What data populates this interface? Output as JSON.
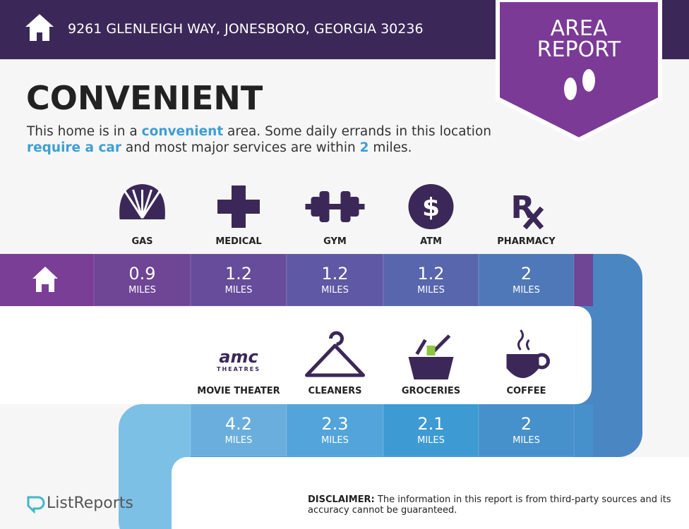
{
  "header": {
    "address": "9261 GLENLEIGH WAY, JONESBORO, GEORGIA 30236"
  },
  "badge": {
    "lines": [
      "AREA",
      "REPORT"
    ]
  },
  "title": "CONVENIENT",
  "description": {
    "parts": [
      "This home is in a ",
      "convenient",
      " area. Some daily errands in this location ",
      "require a car",
      " and most major services are within ",
      "2",
      " miles."
    ]
  },
  "amenities": [
    {
      "label": "GAS",
      "distance": 0.9,
      "unit": "MILES"
    },
    {
      "label": "MEDICAL",
      "distance": 1.2,
      "unit": "MILES"
    },
    {
      "label": "GYM",
      "distance": 1.2,
      "unit": "MILES"
    },
    {
      "label": "ATM",
      "distance": 1.2,
      "unit": "MILES"
    },
    {
      "label": "PHARMACY",
      "distance": 2,
      "unit": "MILES"
    },
    {
      "label": "MOVIE THEATER",
      "distance": 4.2,
      "unit": "MILES"
    },
    {
      "label": "CLEANERS",
      "distance": 2.3,
      "unit": "MILES"
    },
    {
      "label": "GROCERIES",
      "distance": 2.1,
      "unit": "MILES"
    },
    {
      "label": "COFFEE",
      "distance": 2,
      "unit": "MILES"
    }
  ],
  "amc_logo": {
    "brand": "amc",
    "sub": "THEATRES"
  },
  "footer": {
    "logo": "ListReports",
    "disclaimer_label": "DISCLAIMER:",
    "disclaimer": "The information in this report is from third-party sources and its accuracy cannot be guaranteed."
  }
}
